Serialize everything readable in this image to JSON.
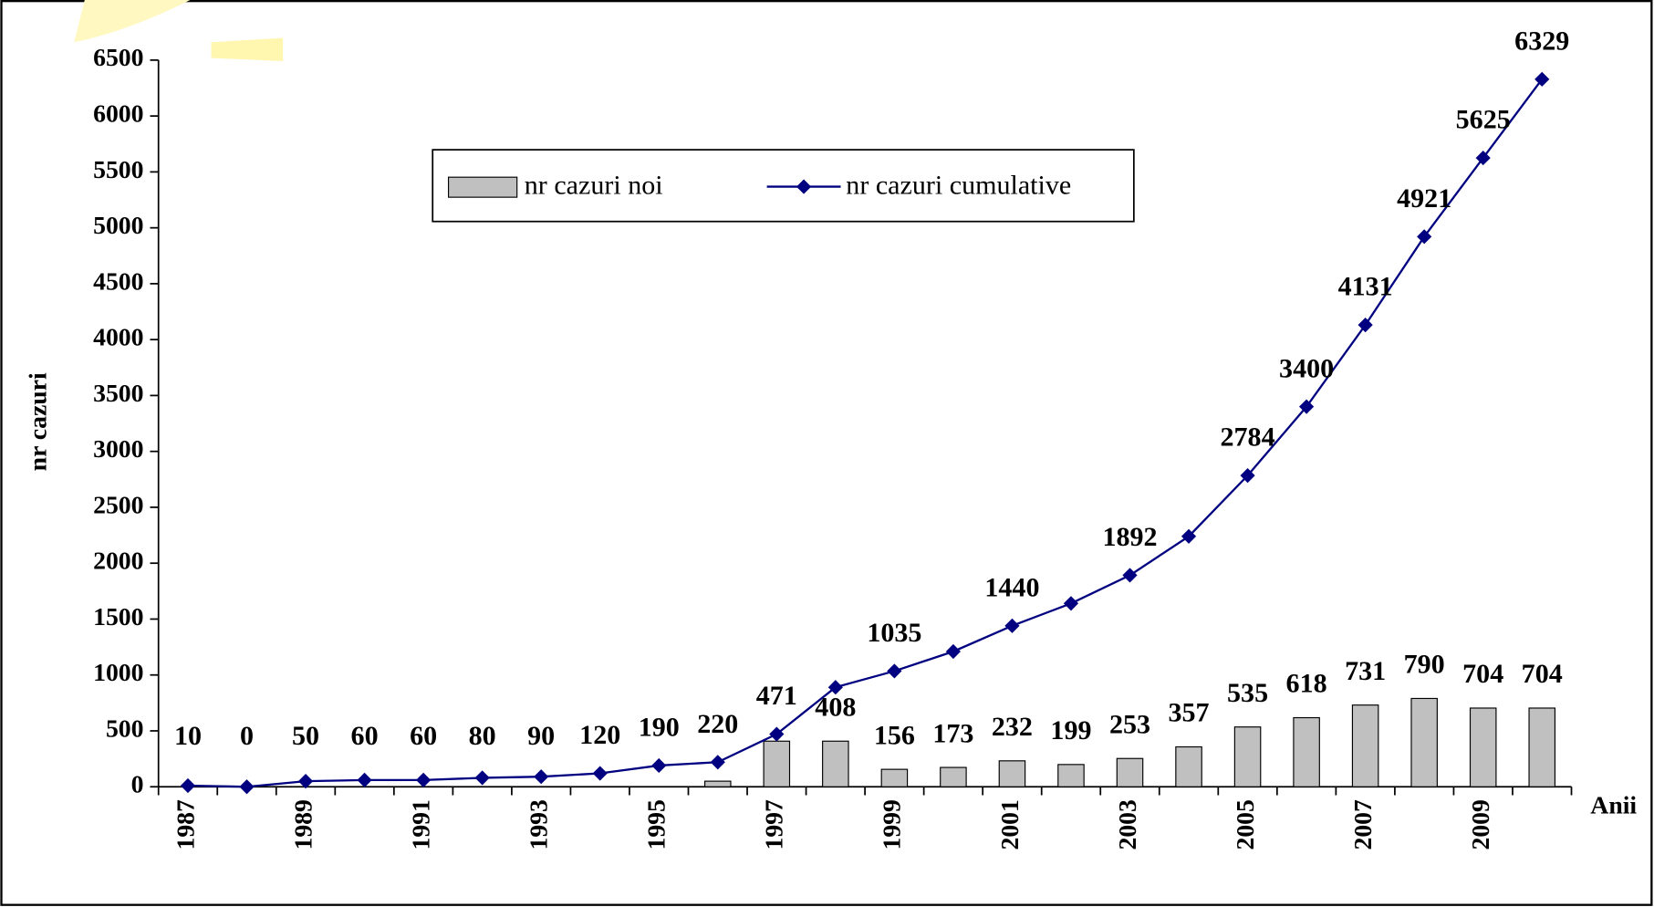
{
  "chart_data": {
    "type": "bar",
    "x_label": "Anii",
    "y_label": "nr cazuri",
    "categories": [
      "1987",
      null,
      "1989",
      null,
      "1991",
      null,
      "1993",
      null,
      "1995",
      null,
      "1997",
      null,
      "1999",
      null,
      "2001",
      null,
      "2003",
      null,
      "2005",
      null,
      "2007",
      null,
      "2009",
      null
    ],
    "series": [
      {
        "name": "nr cazuri noi",
        "type": "bar",
        "color": "#c0c0c0",
        "values": [
          0,
          0,
          0,
          0,
          0,
          0,
          0,
          0,
          0,
          50,
          408,
          408,
          156,
          173,
          232,
          199,
          253,
          357,
          535,
          618,
          731,
          790,
          704,
          704
        ],
        "value_labels": [
          null,
          null,
          null,
          null,
          null,
          null,
          null,
          null,
          null,
          null,
          null,
          "408",
          "156",
          "173",
          "232",
          "199",
          "253",
          "357",
          "535",
          "618",
          "731",
          "790",
          "704",
          "704"
        ]
      },
      {
        "name": "nr cazuri cumulative",
        "type": "line",
        "color": "#000080",
        "values": [
          10,
          0,
          50,
          60,
          60,
          80,
          90,
          120,
          190,
          220,
          471,
          890,
          1035,
          1210,
          1440,
          1640,
          1892,
          2240,
          2784,
          3400,
          4131,
          4921,
          5625,
          6329
        ],
        "value_labels": [
          "10",
          "0",
          "50",
          "60",
          "60",
          "80",
          "90",
          "120",
          "190",
          "220",
          "471",
          null,
          "1035",
          null,
          "1440",
          null,
          "1892",
          null,
          "2784",
          "3400",
          "4131",
          "4921",
          "5625",
          "6329"
        ]
      }
    ],
    "ylim": [
      0,
      6500
    ],
    "yticks": [
      0,
      500,
      1000,
      1500,
      2000,
      2500,
      3000,
      3500,
      4000,
      4500,
      5000,
      5500,
      6000,
      6500
    ],
    "grid": false,
    "legend": "upper center"
  }
}
